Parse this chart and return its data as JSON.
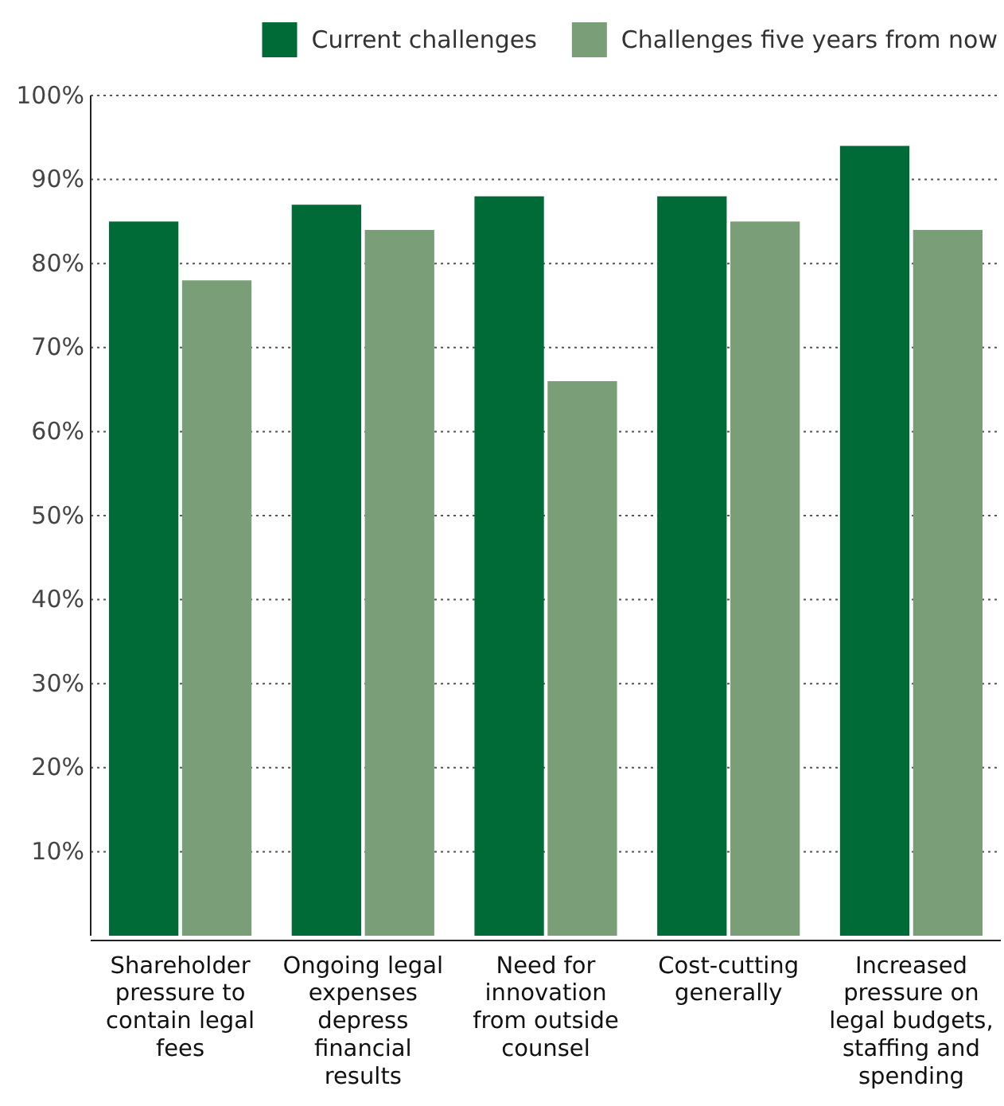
{
  "chart_data": {
    "type": "bar",
    "categories": [
      "Shareholder pressure to contain legal fees",
      "Ongoing legal expenses depress financial results",
      "Need for innovation from outside counsel",
      "Cost-cutting generally",
      "Increased pressure on legal budgets, staffing and spending"
    ],
    "series": [
      {
        "name": "Current challenges",
        "color": "#006b37",
        "values": [
          85,
          87,
          88,
          88,
          94
        ]
      },
      {
        "name": "Challenges five years from now",
        "color": "#7a9f78",
        "values": [
          78,
          84,
          66,
          85,
          84
        ]
      }
    ],
    "ylim": [
      0,
      100
    ],
    "yticks": [
      {
        "value": 10,
        "label": "10%"
      },
      {
        "value": 20,
        "label": "20%"
      },
      {
        "value": 30,
        "label": "30%"
      },
      {
        "value": 40,
        "label": "40%"
      },
      {
        "value": 50,
        "label": "50%"
      },
      {
        "value": 60,
        "label": "60%"
      },
      {
        "value": 70,
        "label": "70%"
      },
      {
        "value": 80,
        "label": "80%"
      },
      {
        "value": 90,
        "label": "90%"
      },
      {
        "value": 100,
        "label": "100%"
      }
    ],
    "grid": "y",
    "legend": "top right"
  }
}
